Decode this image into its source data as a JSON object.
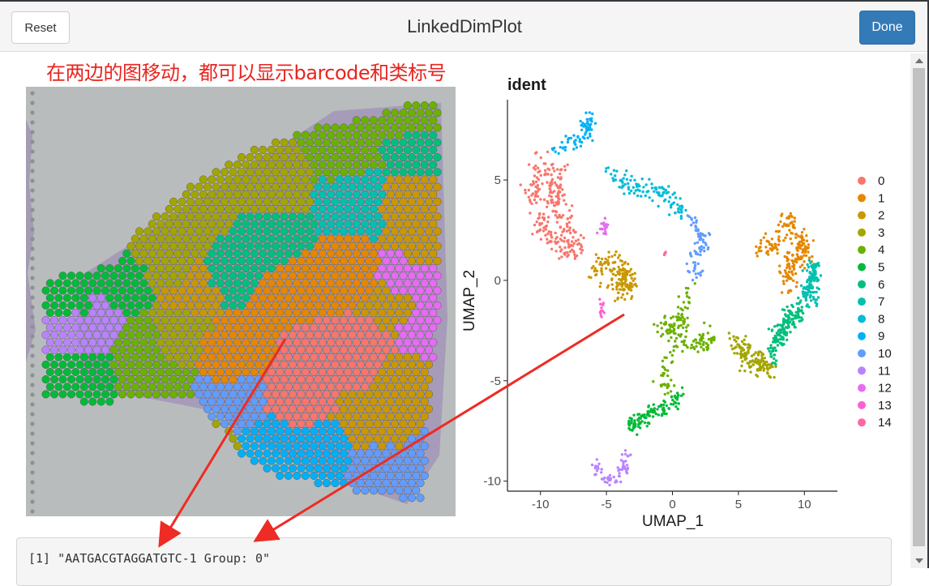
{
  "window": {
    "title": "LinkedDimPlot",
    "reset_label": "Reset",
    "done_label": "Done"
  },
  "annotation": "在两边的图移动，都可以显示barcode和类标号",
  "output_text": "[1] \"AATGACGTAGGATGTC-1 Group: 0\"",
  "chart_data": {
    "type": "scatter",
    "title": "ident",
    "xlabel": "UMAP_1",
    "ylabel": "UMAP_2",
    "xlim": [
      -12.5,
      12.5
    ],
    "ylim": [
      -10.5,
      9.0
    ],
    "xticks": [
      -10,
      -5,
      0,
      5,
      10
    ],
    "yticks": [
      -10,
      -5,
      0,
      5
    ],
    "legend_position": "right",
    "grid": false,
    "series": [
      {
        "name": "0",
        "color": "#F8766D",
        "center": [
          -9.5,
          4.0
        ]
      },
      {
        "name": "1",
        "color": "#E58700",
        "center": [
          8.7,
          2.0
        ]
      },
      {
        "name": "2",
        "color": "#C99800",
        "center": [
          -4.8,
          0.5
        ]
      },
      {
        "name": "3",
        "color": "#A3A500",
        "center": [
          6.0,
          -3.7
        ]
      },
      {
        "name": "4",
        "color": "#6BB100",
        "center": [
          0.8,
          -3.0
        ]
      },
      {
        "name": "5",
        "color": "#00BA38",
        "center": [
          -1.0,
          -6.8
        ]
      },
      {
        "name": "6",
        "color": "#00BF7D",
        "center": [
          8.4,
          -2.8
        ]
      },
      {
        "name": "7",
        "color": "#00C0AF",
        "center": [
          10.5,
          0.0
        ]
      },
      {
        "name": "8",
        "color": "#00BCD8",
        "center": [
          -2.8,
          4.8
        ]
      },
      {
        "name": "9",
        "color": "#00B0F6",
        "center": [
          -7.5,
          6.8
        ]
      },
      {
        "name": "10",
        "color": "#619CFF",
        "center": [
          2.2,
          1.6
        ]
      },
      {
        "name": "11",
        "color": "#B983FF",
        "center": [
          -5.0,
          -9.5
        ]
      },
      {
        "name": "12",
        "color": "#E76BF3",
        "center": [
          -5.1,
          2.5
        ]
      },
      {
        "name": "13",
        "color": "#FD61D1",
        "center": [
          -5.3,
          -1.4
        ]
      },
      {
        "name": "14",
        "color": "#FF67A4",
        "center": [
          -0.5,
          1.3
        ]
      }
    ]
  }
}
